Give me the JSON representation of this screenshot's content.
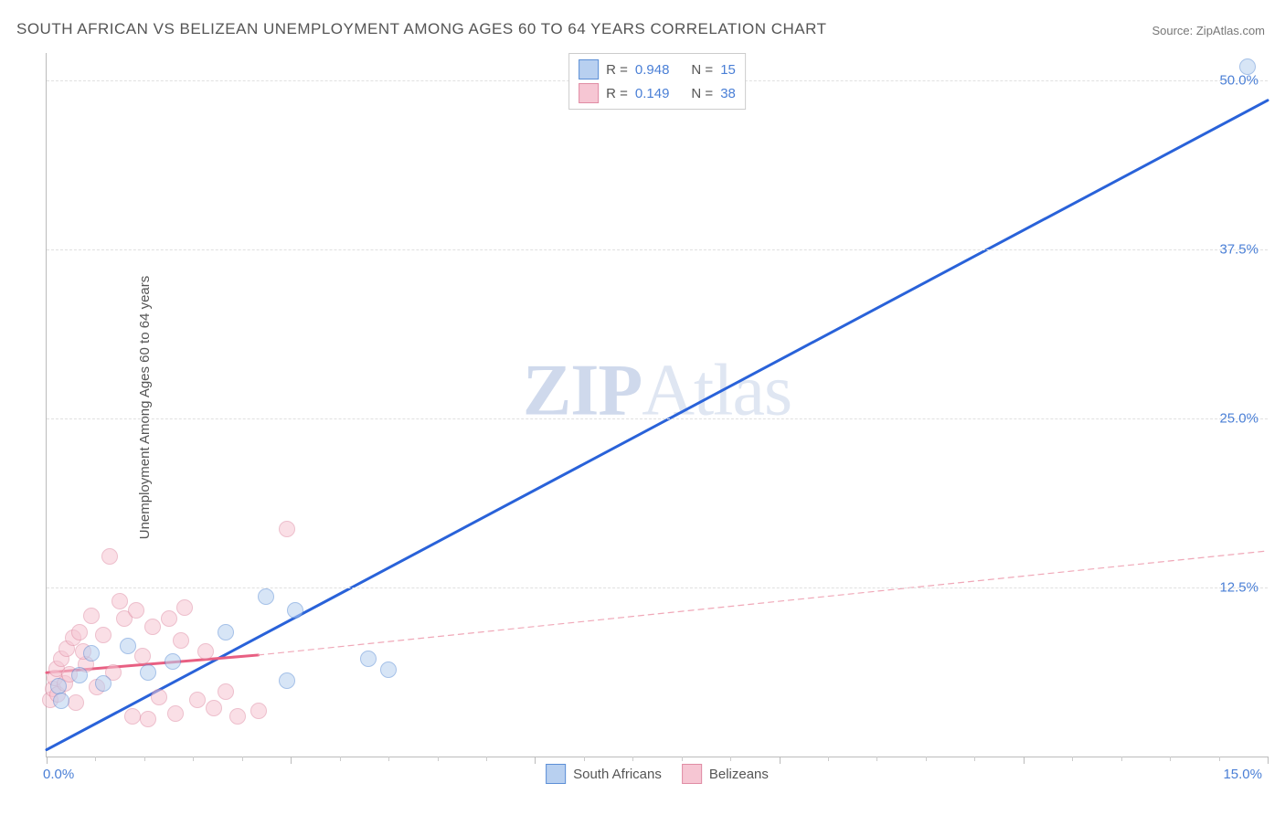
{
  "title": "SOUTH AFRICAN VS BELIZEAN UNEMPLOYMENT AMONG AGES 60 TO 64 YEARS CORRELATION CHART",
  "source": "Source: ZipAtlas.com",
  "ylabel": "Unemployment Among Ages 60 to 64 years",
  "watermark": {
    "bold": "ZIP",
    "rest": "Atlas"
  },
  "chart": {
    "type": "scatter",
    "xlim": [
      0,
      15
    ],
    "ylim": [
      0,
      52
    ],
    "background_color": "#ffffff",
    "grid_color": "#e0e0e0",
    "axis_color": "#bbbbbb",
    "tick_label_color": "#4a7fd6",
    "grid_y": [
      12.5,
      25.0,
      37.5,
      50.0
    ],
    "ytick_labels": [
      "12.5%",
      "25.0%",
      "37.5%",
      "50.0%"
    ],
    "xtick_labels": {
      "left": "0.0%",
      "right": "15.0%"
    },
    "xtick_major_positions": [
      0,
      3,
      6,
      9,
      12,
      15
    ],
    "xtick_minor_step": 0.6,
    "marker_radius": 9,
    "marker_border_width": 1,
    "series": [
      {
        "name": "South Africans",
        "fill": "#b8d0f0",
        "stroke": "#5c8fd6",
        "fill_opacity": 0.55,
        "R": "0.948",
        "N": "15",
        "trend": {
          "color": "#2962d9",
          "width": 3,
          "dash": "none",
          "x1": 0,
          "y1": 0.5,
          "x2": 15,
          "y2": 48.5
        },
        "points": [
          {
            "x": 0.15,
            "y": 5.2
          },
          {
            "x": 0.18,
            "y": 4.1
          },
          {
            "x": 0.4,
            "y": 6.0
          },
          {
            "x": 0.55,
            "y": 7.6
          },
          {
            "x": 0.7,
            "y": 5.4
          },
          {
            "x": 1.0,
            "y": 8.2
          },
          {
            "x": 1.25,
            "y": 6.2
          },
          {
            "x": 1.55,
            "y": 7.0
          },
          {
            "x": 2.2,
            "y": 9.2
          },
          {
            "x": 2.7,
            "y": 11.8
          },
          {
            "x": 2.95,
            "y": 5.6
          },
          {
            "x": 3.05,
            "y": 10.8
          },
          {
            "x": 3.95,
            "y": 7.2
          },
          {
            "x": 4.2,
            "y": 6.4
          },
          {
            "x": 14.75,
            "y": 51.0
          }
        ]
      },
      {
        "name": "Belizeans",
        "fill": "#f6c6d3",
        "stroke": "#e08ca4",
        "fill_opacity": 0.55,
        "R": "0.149",
        "N": "38",
        "trend_solid": {
          "color": "#e85f82",
          "width": 3,
          "dash": "none",
          "x1": 0,
          "y1": 6.2,
          "x2": 2.6,
          "y2": 7.5
        },
        "trend_dashed": {
          "color": "#f0a8b8",
          "width": 1.2,
          "dash": "6,5",
          "x1": 2.6,
          "y1": 7.5,
          "x2": 15,
          "y2": 15.2
        },
        "points": [
          {
            "x": 0.05,
            "y": 4.2
          },
          {
            "x": 0.08,
            "y": 5.0
          },
          {
            "x": 0.1,
            "y": 5.8
          },
          {
            "x": 0.12,
            "y": 6.5
          },
          {
            "x": 0.14,
            "y": 4.6
          },
          {
            "x": 0.18,
            "y": 7.2
          },
          {
            "x": 0.22,
            "y": 5.4
          },
          {
            "x": 0.25,
            "y": 8.0
          },
          {
            "x": 0.28,
            "y": 6.1
          },
          {
            "x": 0.32,
            "y": 8.8
          },
          {
            "x": 0.36,
            "y": 4.0
          },
          {
            "x": 0.4,
            "y": 9.2
          },
          {
            "x": 0.48,
            "y": 6.8
          },
          {
            "x": 0.55,
            "y": 10.4
          },
          {
            "x": 0.62,
            "y": 5.1
          },
          {
            "x": 0.7,
            "y": 9.0
          },
          {
            "x": 0.78,
            "y": 14.8
          },
          {
            "x": 0.82,
            "y": 6.2
          },
          {
            "x": 0.95,
            "y": 10.2
          },
          {
            "x": 1.05,
            "y": 3.0
          },
          {
            "x": 1.1,
            "y": 10.8
          },
          {
            "x": 1.18,
            "y": 7.4
          },
          {
            "x": 1.25,
            "y": 2.8
          },
          {
            "x": 1.3,
            "y": 9.6
          },
          {
            "x": 1.38,
            "y": 4.4
          },
          {
            "x": 1.5,
            "y": 10.2
          },
          {
            "x": 1.58,
            "y": 3.2
          },
          {
            "x": 1.65,
            "y": 8.6
          },
          {
            "x": 1.7,
            "y": 11.0
          },
          {
            "x": 1.85,
            "y": 4.2
          },
          {
            "x": 1.95,
            "y": 7.8
          },
          {
            "x": 2.05,
            "y": 3.6
          },
          {
            "x": 2.2,
            "y": 4.8
          },
          {
            "x": 2.35,
            "y": 3.0
          },
          {
            "x": 2.6,
            "y": 3.4
          },
          {
            "x": 2.95,
            "y": 16.8
          },
          {
            "x": 0.45,
            "y": 7.8
          },
          {
            "x": 0.9,
            "y": 11.5
          }
        ]
      }
    ]
  },
  "legend_top": [
    {
      "swatch_fill": "#b8d0f0",
      "swatch_stroke": "#5c8fd6",
      "r_label": "R =",
      "r_val": "0.948",
      "n_label": "N =",
      "n_val": "15"
    },
    {
      "swatch_fill": "#f6c6d3",
      "swatch_stroke": "#e08ca4",
      "r_label": "R =",
      "r_val": "0.149",
      "n_label": "N =",
      "n_val": "38"
    }
  ],
  "legend_bottom": [
    {
      "swatch_fill": "#b8d0f0",
      "swatch_stroke": "#5c8fd6",
      "label": "South Africans"
    },
    {
      "swatch_fill": "#f6c6d3",
      "swatch_stroke": "#e08ca4",
      "label": "Belizeans"
    }
  ]
}
